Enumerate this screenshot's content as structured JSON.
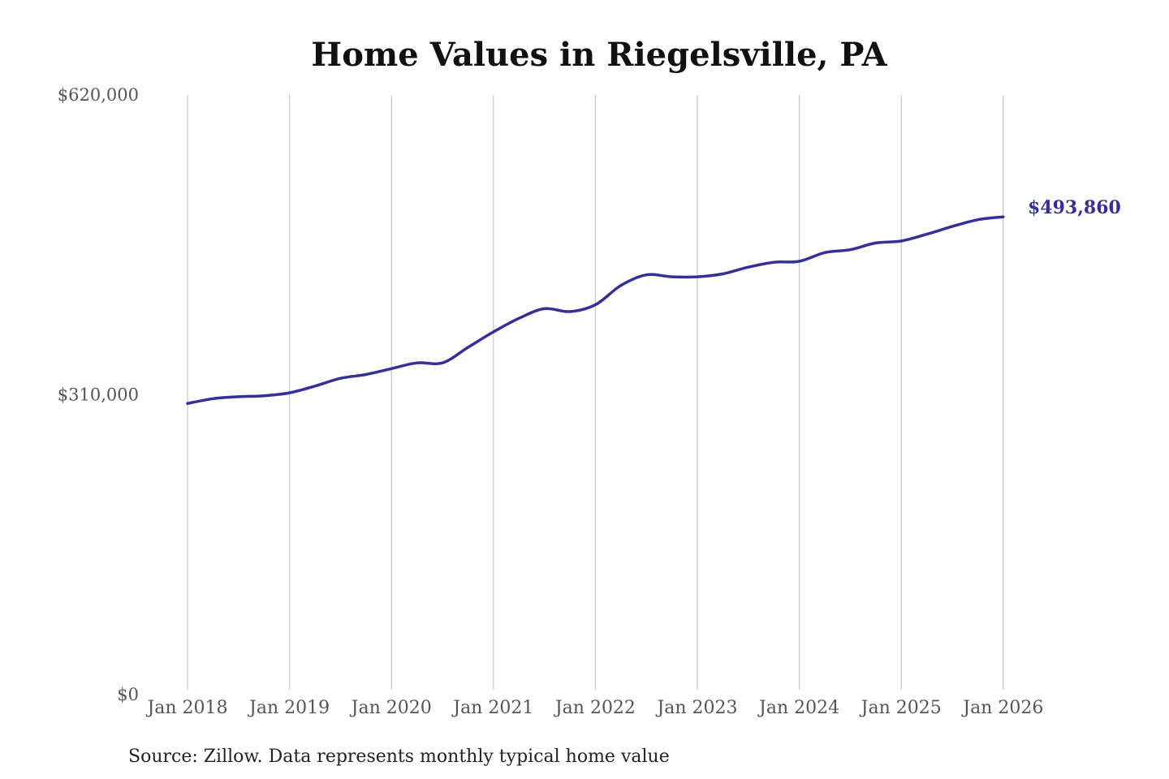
{
  "chart_data": {
    "type": "line",
    "title": "Home Values in Riegelsville, PA",
    "xlabel": "",
    "ylabel": "",
    "ylim": [
      0,
      620000
    ],
    "y_ticks": [
      "$620,000",
      "$310,000",
      "$0"
    ],
    "x_ticks": [
      "Jan 2018",
      "Jan 2019",
      "Jan 2020",
      "Jan 2021",
      "Jan 2022",
      "Jan 2023",
      "Jan 2024",
      "Jan 2025",
      "Jan 2026"
    ],
    "grid": "vertical",
    "line_color": "#33309a",
    "end_label": "$493,860",
    "series": [
      {
        "x": [
          "2018-01",
          "2018-04",
          "2018-07",
          "2018-10",
          "2019-01",
          "2019-04",
          "2019-07",
          "2019-10",
          "2020-01",
          "2020-04",
          "2020-07",
          "2020-10",
          "2021-01",
          "2021-04",
          "2021-07",
          "2021-10",
          "2022-01",
          "2022-04",
          "2022-07",
          "2022-10",
          "2023-01",
          "2023-04",
          "2023-07",
          "2023-10",
          "2024-01",
          "2024-04",
          "2024-07",
          "2024-10",
          "2025-01",
          "2025-04",
          "2025-07",
          "2025-10",
          "2026-01"
        ],
        "values": [
          301000,
          306000,
          308000,
          309000,
          312000,
          319000,
          327000,
          331000,
          337000,
          343000,
          343000,
          359000,
          375000,
          389000,
          399000,
          396000,
          403000,
          423000,
          434000,
          432000,
          432000,
          435000,
          442000,
          447000,
          448000,
          457000,
          460000,
          467000,
          469000,
          476000,
          484000,
          491000,
          494000
        ]
      }
    ]
  },
  "source": "Source: Zillow. Data represents monthly typical home value"
}
